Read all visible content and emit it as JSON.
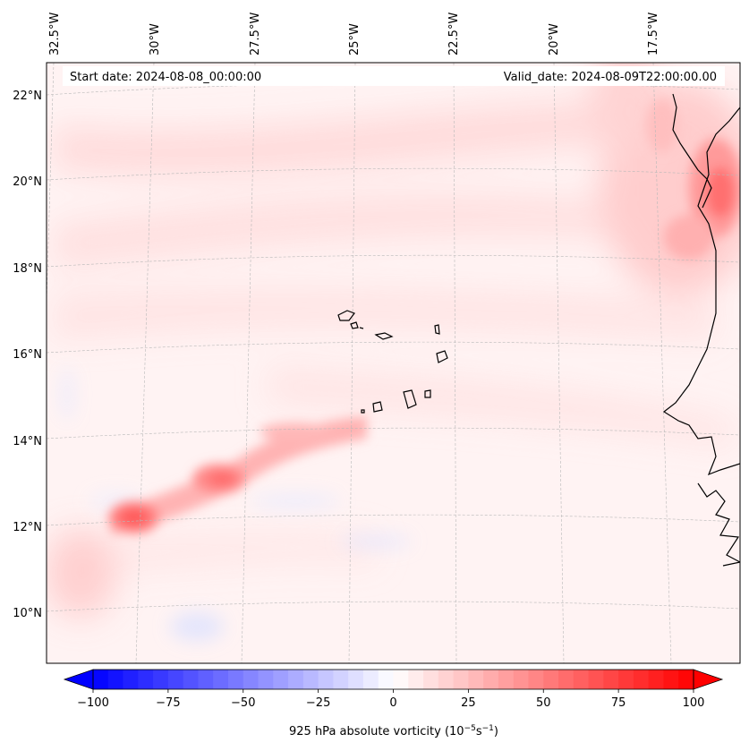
{
  "header": {
    "start_date": "Start date: 2024-08-08_00:00:00",
    "valid_date": "Valid_date: 2024-08-09T22:00:00.00"
  },
  "map": {
    "variable": "925 hPa absolute vorticity",
    "lon_labels": [
      "32.5°W",
      "30°W",
      "27.5°W",
      "25°W",
      "22.5°W",
      "20°W",
      "17.5°W"
    ],
    "lat_labels": [
      "22°N",
      "20°N",
      "18°N",
      "16°N",
      "14°N",
      "12°N",
      "10°N"
    ],
    "features": [
      "Cabo Verde islands",
      "West African coastline",
      "vorticity maximum along 12–13°N near 27–31°W",
      "vorticity maximum near 20°N coast"
    ]
  },
  "colorbar": {
    "label_prefix": "925 hPa absolute vorticity (10",
    "label_exp1": "−5",
    "label_mid": "s",
    "label_exp2": "−1",
    "label_suffix": ")",
    "min": -100,
    "max": 100,
    "ticks": [
      {
        "value": -100,
        "label": "−100"
      },
      {
        "value": -75,
        "label": "−75"
      },
      {
        "value": -50,
        "label": "−50"
      },
      {
        "value": -25,
        "label": "−25"
      },
      {
        "value": 0,
        "label": "0"
      },
      {
        "value": 25,
        "label": "25"
      },
      {
        "value": 50,
        "label": "50"
      },
      {
        "value": 75,
        "label": "75"
      },
      {
        "value": 100,
        "label": "100"
      }
    ],
    "low_color": "#0000ff",
    "mid_color": "#ffffff",
    "high_color": "#ff0000"
  }
}
